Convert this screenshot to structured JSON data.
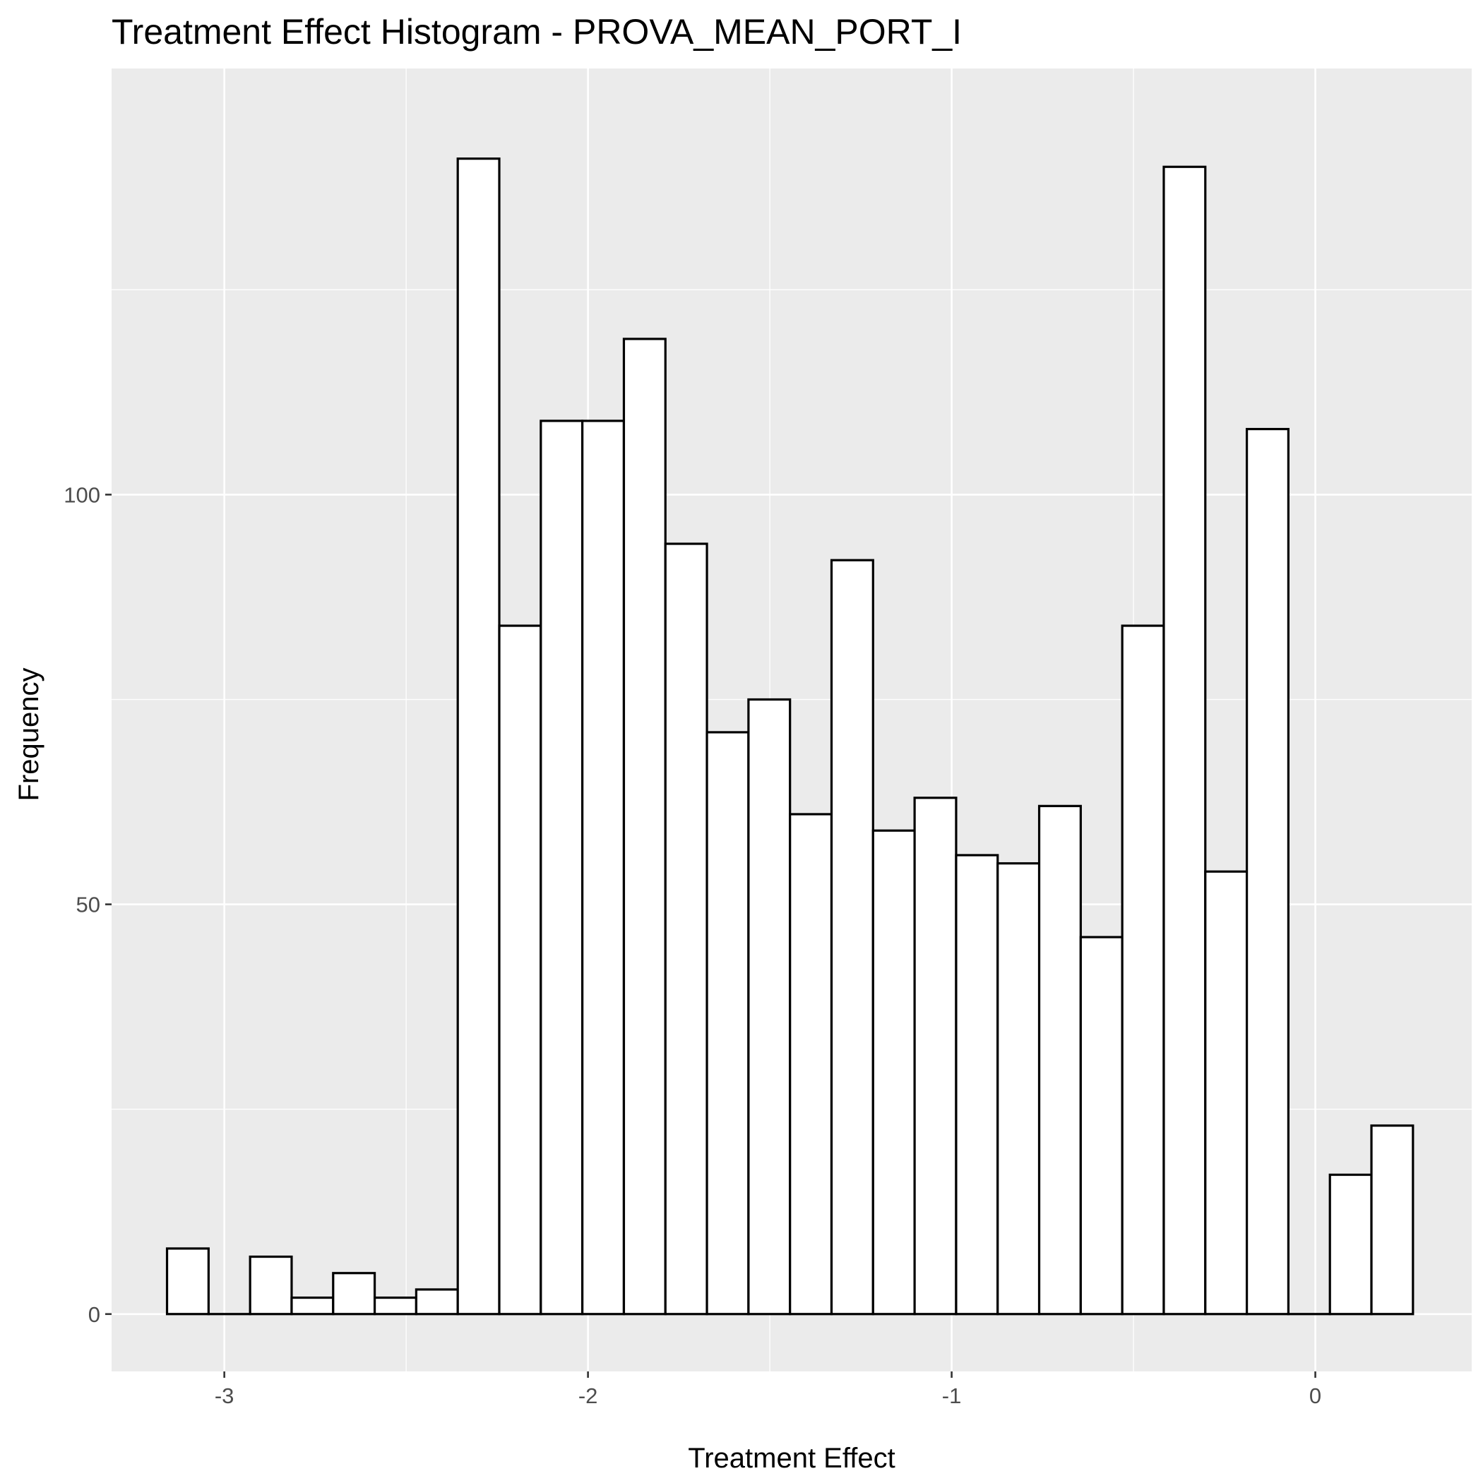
{
  "chart_data": {
    "type": "bar",
    "title": "Treatment Effect Histogram -  PROVA_MEAN_PORT_I",
    "xlabel": "Treatment Effect",
    "ylabel": "Frequency",
    "x_ticks": [
      "-3",
      "-2",
      "-1",
      "0"
    ],
    "x_tick_values": [
      -3,
      -2,
      -1,
      0
    ],
    "y_ticks": [
      "0",
      "50",
      "100"
    ],
    "y_tick_values": [
      0,
      50,
      100
    ],
    "xlim": [
      -3.31,
      0.43
    ],
    "ylim": [
      -7.0,
      152.0
    ],
    "grid": true,
    "bin_width": 0.1142,
    "bins": [
      {
        "x0": -3.1575,
        "x1": -3.0433,
        "value": 8
      },
      {
        "x0": -3.0433,
        "x1": -2.9291,
        "value": 0
      },
      {
        "x0": -2.9291,
        "x1": -2.8149,
        "value": 7
      },
      {
        "x0": -2.8149,
        "x1": -2.7007,
        "value": 2
      },
      {
        "x0": -2.7007,
        "x1": -2.5865,
        "value": 5
      },
      {
        "x0": -2.5865,
        "x1": -2.4723,
        "value": 2
      },
      {
        "x0": -2.4723,
        "x1": -2.3581,
        "value": 3
      },
      {
        "x0": -2.3581,
        "x1": -2.2439,
        "value": 141
      },
      {
        "x0": -2.2439,
        "x1": -2.1297,
        "value": 84
      },
      {
        "x0": -2.1297,
        "x1": -2.0155,
        "value": 109
      },
      {
        "x0": -2.0155,
        "x1": -1.9013,
        "value": 109
      },
      {
        "x0": -1.9013,
        "x1": -1.7871,
        "value": 119
      },
      {
        "x0": -1.7871,
        "x1": -1.6729,
        "value": 94
      },
      {
        "x0": -1.6729,
        "x1": -1.5587,
        "value": 71
      },
      {
        "x0": -1.5587,
        "x1": -1.4445,
        "value": 75
      },
      {
        "x0": -1.4445,
        "x1": -1.3303,
        "value": 61
      },
      {
        "x0": -1.3303,
        "x1": -1.2161,
        "value": 92
      },
      {
        "x0": -1.2161,
        "x1": -1.1019,
        "value": 59
      },
      {
        "x0": -1.1019,
        "x1": -0.9877,
        "value": 63
      },
      {
        "x0": -0.9877,
        "x1": -0.8735,
        "value": 56
      },
      {
        "x0": -0.8735,
        "x1": -0.7593,
        "value": 55
      },
      {
        "x0": -0.7593,
        "x1": -0.6451,
        "value": 62
      },
      {
        "x0": -0.6451,
        "x1": -0.5309,
        "value": 46
      },
      {
        "x0": -0.5309,
        "x1": -0.4167,
        "value": 84
      },
      {
        "x0": -0.4167,
        "x1": -0.3025,
        "value": 140
      },
      {
        "x0": -0.3025,
        "x1": -0.1883,
        "value": 54
      },
      {
        "x0": -0.1883,
        "x1": -0.0741,
        "value": 108
      },
      {
        "x0": -0.0741,
        "x1": 0.0401,
        "value": 0
      },
      {
        "x0": 0.0401,
        "x1": 0.1543,
        "value": 17
      },
      {
        "x0": 0.1543,
        "x1": 0.2685,
        "value": 23
      }
    ]
  },
  "colors": {
    "panel_background": "#ebebeb",
    "grid_major": "#ffffff",
    "bar_fill": "#ffffff",
    "bar_outline": "#000000",
    "tick_label": "#4d4d4d",
    "tick_mark": "#333333"
  }
}
